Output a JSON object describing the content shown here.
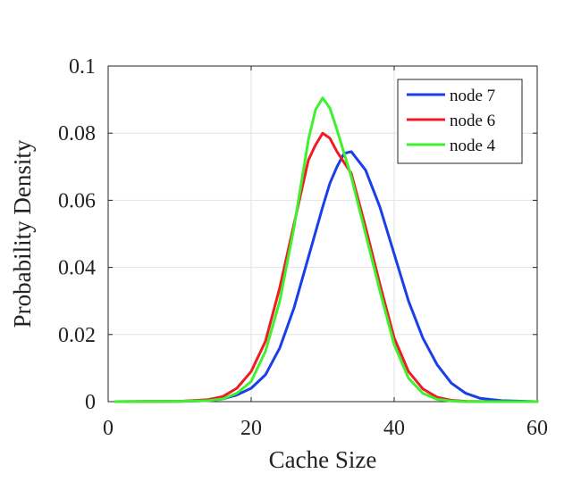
{
  "chart_data": {
    "type": "line",
    "title": "",
    "xlabel": "Cache Size",
    "ylabel": "Probability Density",
    "xlim": [
      0,
      60
    ],
    "ylim": [
      0,
      0.1
    ],
    "xticks": [
      0,
      20,
      40,
      60
    ],
    "xtick_labels": [
      "0",
      "20",
      "40",
      "60"
    ],
    "yticks": [
      0,
      0.02,
      0.04,
      0.06,
      0.08,
      0.1
    ],
    "ytick_labels": [
      "0",
      "0.02",
      "0.04",
      "0.06",
      "0.08",
      "0.1"
    ],
    "grid": true,
    "legend_position": "top-right",
    "series": [
      {
        "name": "node 7",
        "color": "#1a3ee8",
        "x": [
          1,
          10,
          14,
          16,
          18,
          20,
          22,
          24,
          26,
          28,
          30,
          31,
          32,
          33,
          34,
          36,
          38,
          40,
          42,
          44,
          46,
          48,
          50,
          52,
          55,
          60
        ],
        "y": [
          0,
          0.0001,
          0.0003,
          0.0008,
          0.002,
          0.004,
          0.008,
          0.016,
          0.028,
          0.043,
          0.058,
          0.065,
          0.07,
          0.074,
          0.0745,
          0.069,
          0.058,
          0.044,
          0.03,
          0.019,
          0.011,
          0.0055,
          0.0025,
          0.001,
          0.0003,
          0
        ]
      },
      {
        "name": "node 6",
        "color": "#ee1c25",
        "x": [
          1,
          10,
          14,
          16,
          18,
          20,
          22,
          24,
          26,
          28,
          29,
          30,
          31,
          32,
          34,
          36,
          38,
          40,
          42,
          44,
          46,
          48,
          50,
          55,
          60
        ],
        "y": [
          0,
          0.0001,
          0.0006,
          0.0015,
          0.004,
          0.009,
          0.018,
          0.034,
          0.053,
          0.072,
          0.0765,
          0.08,
          0.0785,
          0.0745,
          0.068,
          0.052,
          0.035,
          0.019,
          0.009,
          0.0038,
          0.0013,
          0.0004,
          0.0001,
          0,
          0
        ]
      },
      {
        "name": "node 4",
        "color": "#3ef02e",
        "x": [
          1,
          10,
          14,
          16,
          18,
          20,
          22,
          24,
          26,
          28,
          29,
          30,
          31,
          32,
          34,
          36,
          38,
          40,
          42,
          44,
          46,
          48,
          50,
          55,
          60
        ],
        "y": [
          0,
          0.0001,
          0.0003,
          0.0008,
          0.0025,
          0.006,
          0.015,
          0.03,
          0.052,
          0.078,
          0.087,
          0.0905,
          0.0875,
          0.081,
          0.067,
          0.05,
          0.033,
          0.017,
          0.007,
          0.0025,
          0.0007,
          0.0002,
          0,
          0,
          0
        ]
      }
    ]
  }
}
